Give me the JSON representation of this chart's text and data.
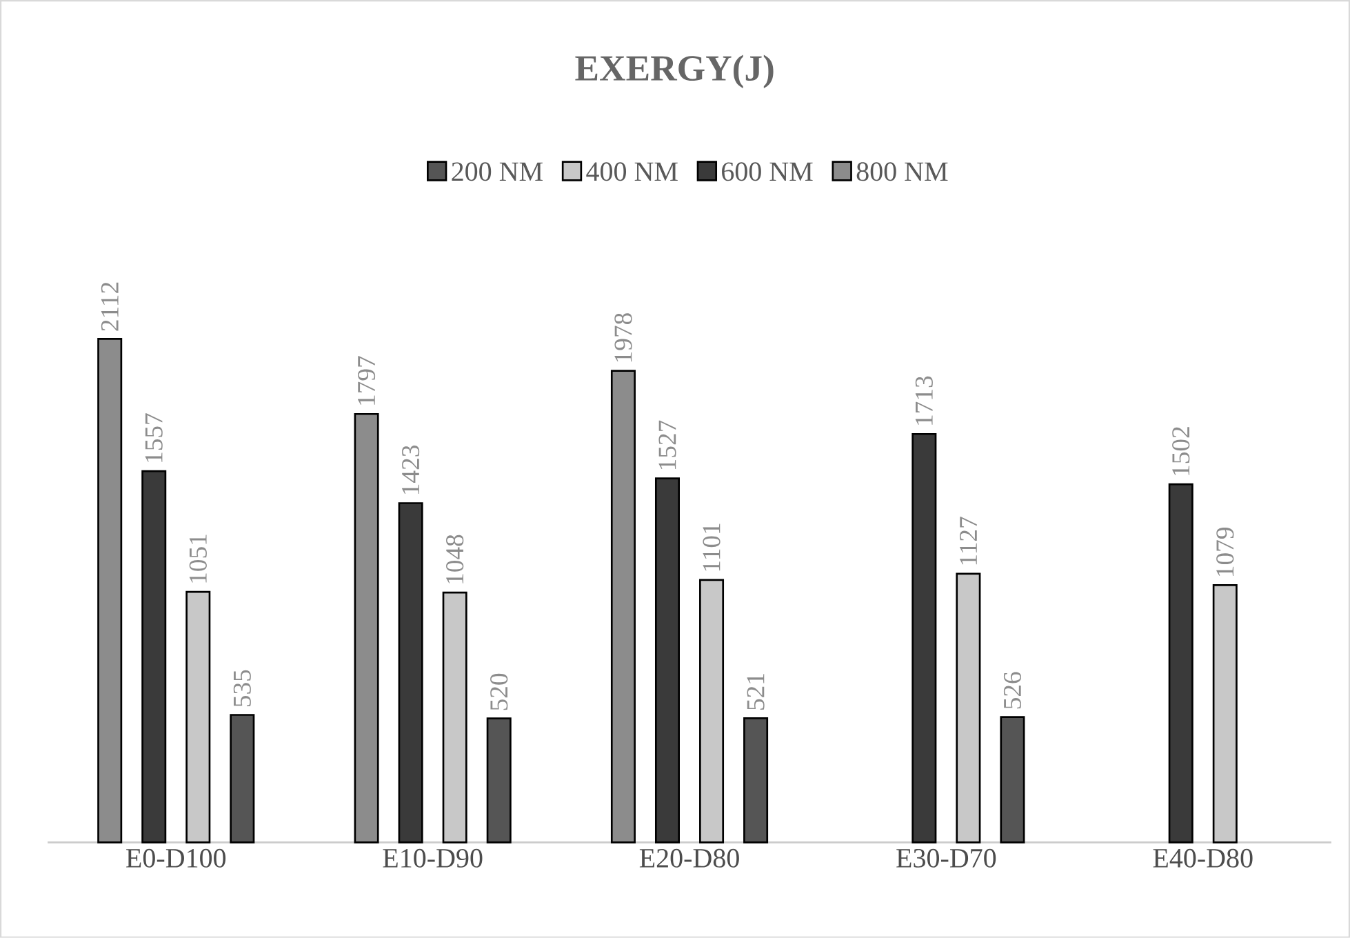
{
  "chart_data": {
    "type": "bar",
    "title": "EXERGY(J)",
    "data_labels": true,
    "legend": "top",
    "categories": [
      "E0-D100",
      "E10-D90",
      "E20-D80",
      "E30-D70",
      "E40-D80"
    ],
    "series": [
      {
        "name": "200 NM",
        "color": "#555555",
        "values": [
          535,
          520,
          521,
          526,
          null
        ]
      },
      {
        "name": "400 NM",
        "color": "#c8c8c8",
        "values": [
          1051,
          1048,
          1101,
          1127,
          1079
        ]
      },
      {
        "name": "600 NM",
        "color": "#3a3a3a",
        "values": [
          1557,
          1423,
          1527,
          1713,
          1502
        ]
      },
      {
        "name": "800 NM",
        "color": "#8c8c8c",
        "values": [
          2112,
          1797,
          1978,
          null,
          null
        ]
      }
    ]
  }
}
